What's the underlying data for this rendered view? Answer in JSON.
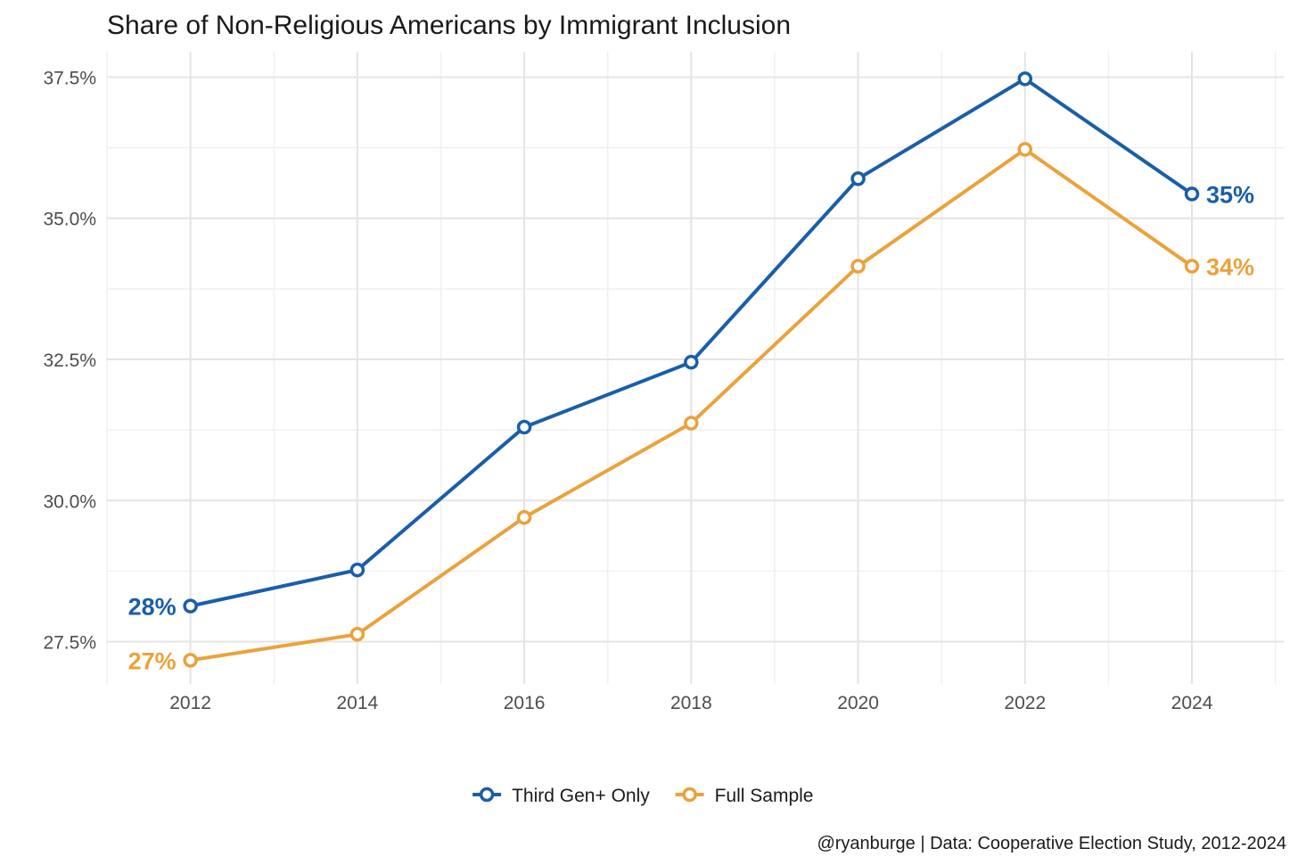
{
  "chart_data": {
    "type": "line",
    "title": "Share of Non-Religious Americans by Immigrant Inclusion",
    "x": [
      2012,
      2014,
      2016,
      2018,
      2020,
      2022,
      2024
    ],
    "x_tick_labels": [
      "2012",
      "2014",
      "2016",
      "2018",
      "2020",
      "2022",
      "2024"
    ],
    "xlim": [
      2011.0,
      2025.1
    ],
    "ylim": [
      26.75,
      37.95
    ],
    "y_ticks": [
      27.5,
      30.0,
      32.5,
      35.0,
      37.5
    ],
    "y_tick_labels": [
      "27.5%",
      "30.0%",
      "32.5%",
      "35.0%",
      "37.5%"
    ],
    "grid": true,
    "legend_position": "bottom",
    "series": [
      {
        "name": "Third Gen+ Only",
        "color": "#1a5ea8",
        "values": [
          28.13,
          28.77,
          31.3,
          32.45,
          35.7,
          37.47,
          35.43
        ],
        "start_label": "28%",
        "end_label": "35%"
      },
      {
        "name": "Full Sample",
        "color": "#eaa23b",
        "values": [
          27.17,
          27.63,
          29.7,
          31.37,
          34.15,
          36.22,
          34.15
        ],
        "start_label": "27%",
        "end_label": "34%"
      }
    ],
    "caption": "@ryanburge | Data: Cooperative Election Study, 2012-2024"
  }
}
